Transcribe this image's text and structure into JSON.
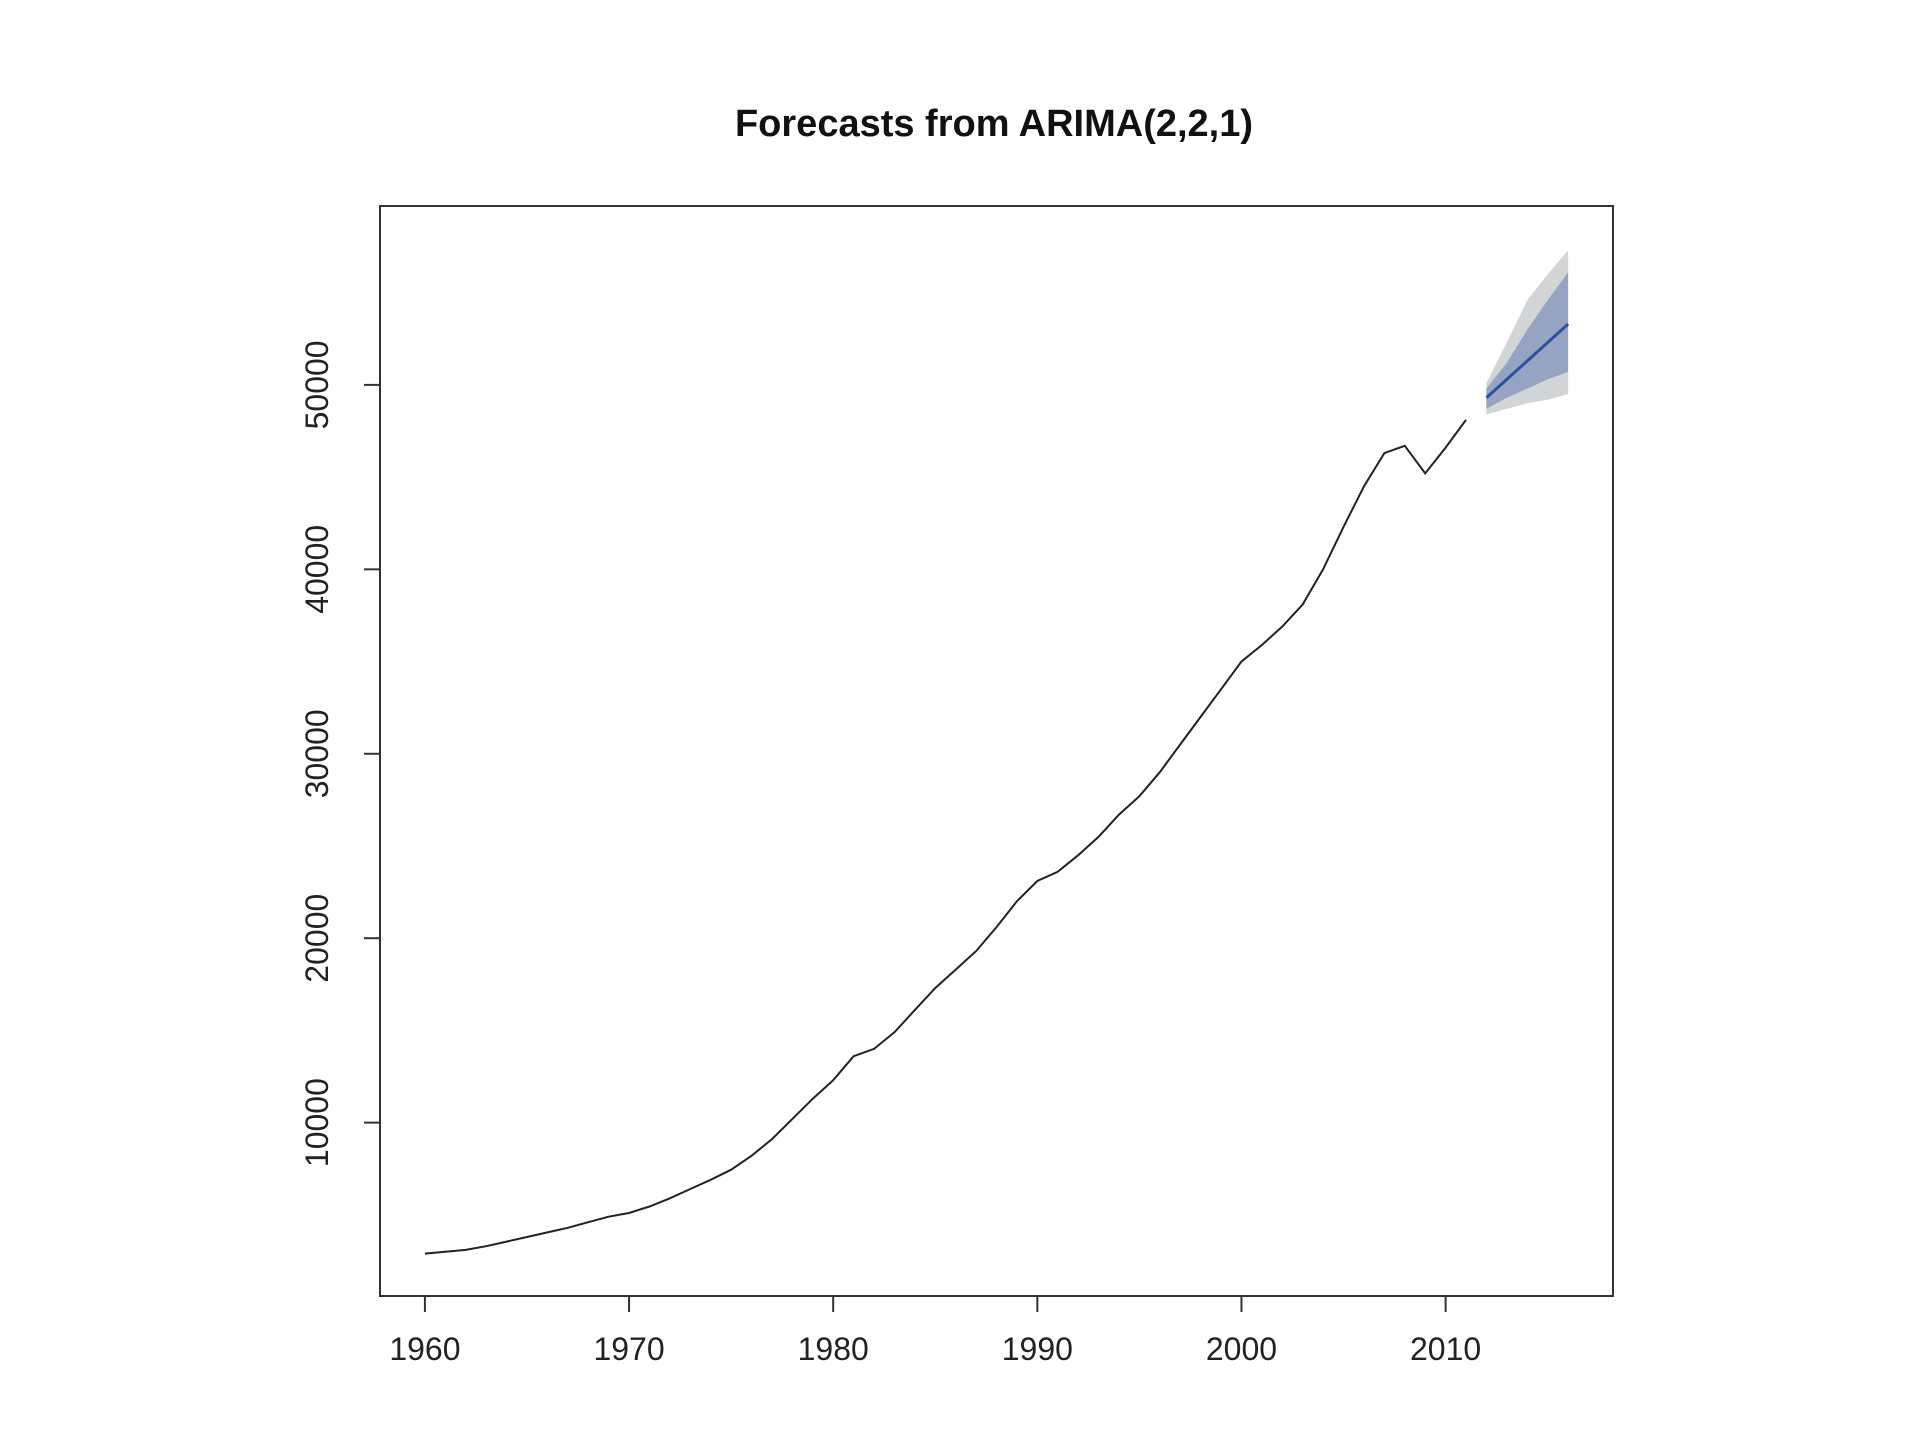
{
  "chart_data": {
    "type": "line",
    "title": "Forecasts from ARIMA(2,2,1)",
    "xlabel": "",
    "ylabel": "",
    "xlim": [
      1957.8,
      2018.2
    ],
    "ylim": [
      600,
      59700
    ],
    "x_ticks": [
      1960,
      1970,
      1980,
      1990,
      2000,
      2010
    ],
    "y_ticks": [
      10000,
      20000,
      30000,
      40000,
      50000
    ],
    "grid": false,
    "colors": {
      "history": "#222222",
      "forecast": "#2a52a0",
      "band80": "#96a3c3",
      "band95": "#d3d4d6",
      "frame": "#333333"
    },
    "series": [
      {
        "x": [
          1960,
          1961,
          1962,
          1963,
          1964,
          1965,
          1966,
          1967,
          1968,
          1969,
          1970,
          1971,
          1972,
          1973,
          1974,
          1975,
          1976,
          1977,
          1978,
          1979,
          1980,
          1981,
          1982,
          1983,
          1984,
          1985,
          1986,
          1987,
          1988,
          1989,
          1990,
          1991,
          1992,
          1993,
          1994,
          1995,
          1996,
          1997,
          1998,
          1999,
          2000,
          2001,
          2002,
          2003,
          2004,
          2005,
          2006,
          2007,
          2008,
          2009,
          2010,
          2011
        ],
        "values": [
          2900,
          3000,
          3100,
          3300,
          3550,
          3800,
          4050,
          4300,
          4600,
          4900,
          5100,
          5450,
          5900,
          6400,
          6900,
          7450,
          8200,
          9100,
          10200,
          11300,
          12300,
          13600,
          14000,
          14900,
          16100,
          17300,
          18300,
          19300,
          20600,
          22000,
          23100,
          23600,
          24500,
          25500,
          26700,
          27700,
          29000,
          30500,
          32000,
          33500,
          35000,
          35900,
          36900,
          38100,
          40000,
          42300,
          44500,
          46300,
          46700,
          45200,
          46600,
          48100
        ]
      },
      {
        "x": [
          2012,
          2013,
          2014,
          2015,
          2016
        ],
        "values": [
          49300,
          50300,
          51300,
          52300,
          53300
        ],
        "lo80": [
          48700,
          49300,
          49800,
          50300,
          50700
        ],
        "hi80": [
          49800,
          51200,
          53000,
          54600,
          56100
        ],
        "lo95": [
          48400,
          48700,
          49000,
          49200,
          49500
        ],
        "hi95": [
          50100,
          52300,
          54600,
          56000,
          57300
        ]
      }
    ]
  }
}
